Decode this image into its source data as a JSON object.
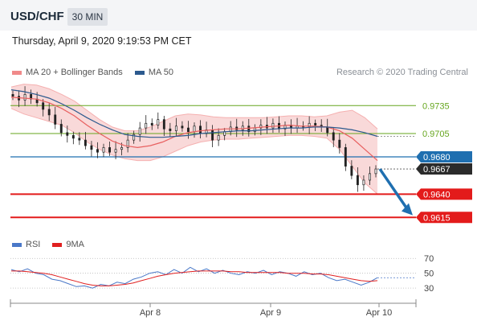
{
  "header": {
    "pair": "USD/CHF",
    "timeframe": "30 MIN"
  },
  "datetime": "Thursday, April 9, 2020 9:19:53 PM CET",
  "credit": "Research © 2020 Trading Central",
  "legend_main": [
    {
      "label": "MA 20 + Bollinger Bands",
      "color": "#f08a8a"
    },
    {
      "label": "MA 50",
      "color": "#2c5a8e"
    }
  ],
  "legend_rsi": [
    {
      "label": "RSI",
      "color": "#4a78c8"
    },
    {
      "label": "9MA",
      "color": "#e02020"
    }
  ],
  "colors": {
    "green_level": "#66a61e",
    "blue_level": "#1f6fb0",
    "red_level": "#e31b1b",
    "arrow": "#1f6fb0"
  },
  "chart_data": [
    {
      "type": "candlestick",
      "ylim": [
        0.9598,
        0.9762
      ],
      "x_ticks": [
        "Apr 8",
        "Apr 9",
        "Apr 10"
      ],
      "levels": [
        {
          "value": 0.9735,
          "label": "0.9735",
          "style": "green-line"
        },
        {
          "value": 0.9705,
          "label": "0.9705",
          "style": "green-line"
        },
        {
          "value": 0.968,
          "label": "0.9680",
          "style": "blue-badge"
        },
        {
          "value": 0.9667,
          "label": "0.9667",
          "style": "dark-badge"
        },
        {
          "value": 0.964,
          "label": "0.9640",
          "style": "red-badge"
        },
        {
          "value": 0.9615,
          "label": "0.9615",
          "style": "red-badge"
        }
      ],
      "ma20": [
        0.9744,
        0.9743,
        0.9742,
        0.9738,
        0.9732,
        0.9724,
        0.9714,
        0.9705,
        0.9697,
        0.9692,
        0.969,
        0.9692,
        0.9696,
        0.9702,
        0.9706,
        0.9708,
        0.9709,
        0.971,
        0.971,
        0.9711,
        0.9712,
        0.9713,
        0.9714,
        0.9713,
        0.9713,
        0.9712,
        0.9708,
        0.97,
        0.9688,
        0.9676
      ],
      "ma50": [
        0.9752,
        0.975,
        0.9747,
        0.9743,
        0.9737,
        0.973,
        0.9722,
        0.9715,
        0.9709,
        0.9704,
        0.9702,
        0.9701,
        0.9701,
        0.9702,
        0.9703,
        0.9705,
        0.9706,
        0.9707,
        0.9708,
        0.9708,
        0.9709,
        0.971,
        0.9711,
        0.9711,
        0.9712,
        0.9712,
        0.9711,
        0.9709,
        0.9706,
        0.9702
      ],
      "bb_upper": [
        0.9755,
        0.9758,
        0.9757,
        0.9753,
        0.9747,
        0.974,
        0.973,
        0.972,
        0.9712,
        0.9708,
        0.9708,
        0.9712,
        0.9718,
        0.9724,
        0.9726,
        0.9725,
        0.9723,
        0.9722,
        0.9722,
        0.9722,
        0.9722,
        0.9723,
        0.9724,
        0.9724,
        0.9723,
        0.9724,
        0.9728,
        0.973,
        0.9722,
        0.971
      ],
      "bb_lower": [
        0.9732,
        0.9726,
        0.9722,
        0.9718,
        0.9714,
        0.9706,
        0.9696,
        0.9688,
        0.9682,
        0.9678,
        0.9676,
        0.9676,
        0.968,
        0.9686,
        0.9692,
        0.9696,
        0.9698,
        0.9699,
        0.9699,
        0.97,
        0.9701,
        0.9702,
        0.9703,
        0.9703,
        0.9702,
        0.97,
        0.9688,
        0.967,
        0.9652,
        0.964
      ],
      "closes": [
        0.9745,
        0.9741,
        0.9747,
        0.9742,
        0.9738,
        0.9731,
        0.9725,
        0.9715,
        0.9706,
        0.9703,
        0.97,
        0.9698,
        0.9692,
        0.9688,
        0.9685,
        0.969,
        0.9685,
        0.9688,
        0.969,
        0.9698,
        0.9704,
        0.9711,
        0.9716,
        0.9714,
        0.972,
        0.971,
        0.9708,
        0.9713,
        0.9711,
        0.9707,
        0.9713,
        0.9705,
        0.9709,
        0.9698,
        0.9703,
        0.9707,
        0.9712,
        0.9709,
        0.9713,
        0.9707,
        0.9711,
        0.9714,
        0.9711,
        0.9716,
        0.971,
        0.9714,
        0.9711,
        0.9713,
        0.9712,
        0.9716,
        0.9714,
        0.9712,
        0.9706,
        0.9698,
        0.969,
        0.967,
        0.966,
        0.965,
        0.9655,
        0.9662,
        0.9667
      ]
    },
    {
      "type": "line",
      "ylim": [
        15,
        80
      ],
      "y_ticks": [
        "70",
        "50",
        "30"
      ],
      "rsi": [
        55,
        52,
        56,
        50,
        48,
        42,
        40,
        36,
        32,
        33,
        30,
        35,
        33,
        38,
        36,
        42,
        45,
        50,
        52,
        48,
        55,
        50,
        58,
        52,
        56,
        50,
        54,
        50,
        48,
        52,
        50,
        54,
        48,
        52,
        50,
        46,
        52,
        48,
        50,
        44,
        40,
        42,
        38,
        34,
        38,
        44
      ],
      "rsi_9ma": [
        53,
        53,
        52,
        51,
        50,
        48,
        45,
        42,
        39,
        36,
        34,
        33,
        33,
        34,
        35,
        37,
        40,
        43,
        46,
        48,
        50,
        51,
        52,
        53,
        53,
        53,
        53,
        52,
        52,
        51,
        51,
        51,
        51,
        51,
        50,
        50,
        50,
        49,
        49,
        48,
        46,
        44,
        42,
        40,
        39,
        40
      ]
    }
  ]
}
